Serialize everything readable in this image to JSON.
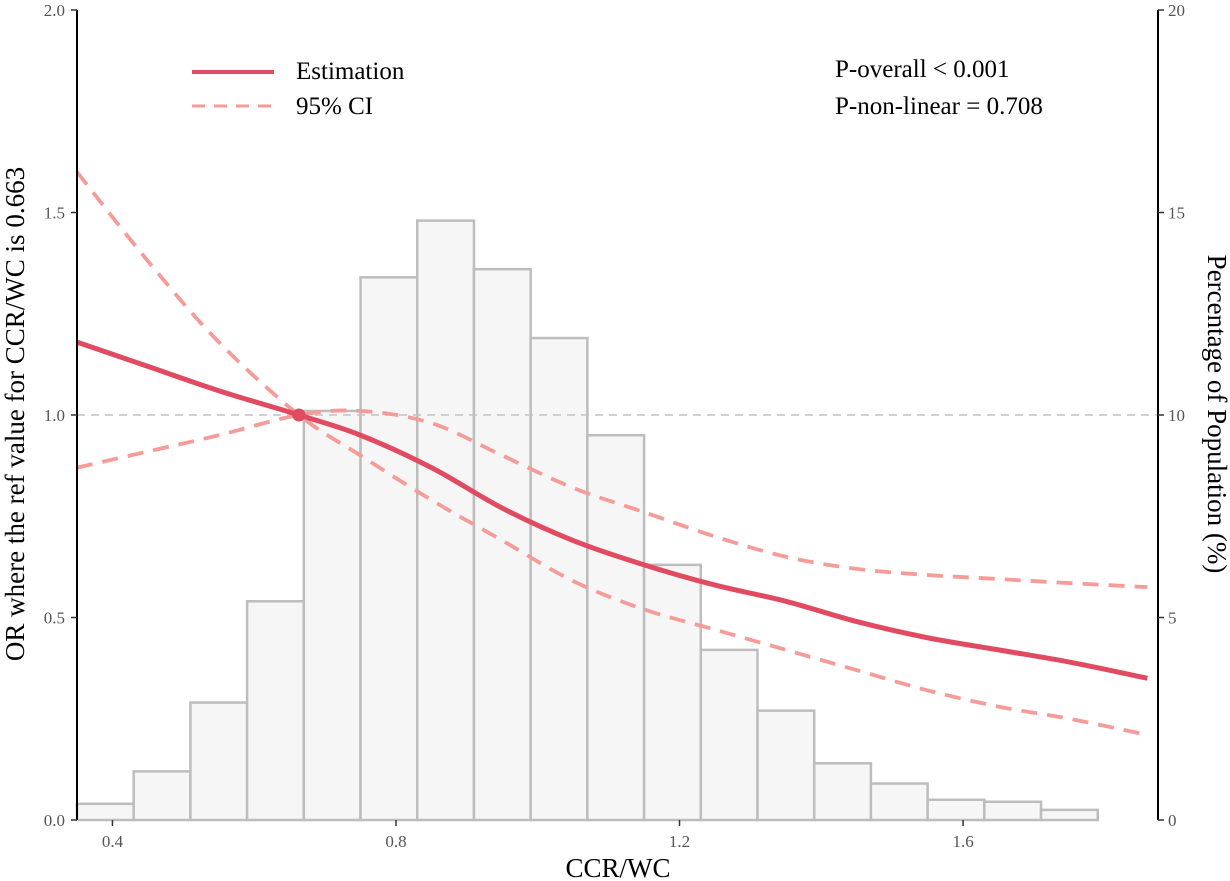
{
  "chart_data": {
    "type": "restricted-cubic-spline-with-histogram",
    "x_axis": {
      "label": "CCR/WC",
      "ticks": [
        0.4,
        0.8,
        1.2,
        1.6
      ],
      "tick_labels": [
        "0.4",
        "0.8",
        "1.2",
        "1.6"
      ],
      "range": [
        0.35,
        1.875
      ]
    },
    "y_axis_left": {
      "label": "OR where the ref value for CCR/WC is 0.663",
      "ticks": [
        0,
        0.5,
        1.0,
        1.5,
        2.0
      ],
      "tick_labels": [
        "0.0",
        "0.5",
        "1.0",
        "1.5",
        "2.0"
      ],
      "range": [
        0,
        2
      ]
    },
    "y_axis_right": {
      "label": "Percentage of Population (%)",
      "ticks": [
        0,
        5,
        10,
        15,
        20
      ],
      "tick_labels": [
        "0",
        "5",
        "10",
        "15",
        "20"
      ],
      "range": [
        0,
        20
      ]
    },
    "reference_line_y": 1.0,
    "reference_point": {
      "x": 0.663,
      "y": 1.0
    },
    "legend": [
      {
        "name": "Estimation",
        "style": "solid"
      },
      {
        "name": "95% CI",
        "style": "dashed"
      }
    ],
    "annotations": [
      "P-overall < 0.001",
      "P-non-linear = 0.708"
    ],
    "histogram": {
      "bin_edges": [
        0.35,
        0.43,
        0.51,
        0.59,
        0.67,
        0.75,
        0.83,
        0.91,
        0.99,
        1.07,
        1.15,
        1.23,
        1.31,
        1.39,
        1.47,
        1.55,
        1.63,
        1.71,
        1.79
      ],
      "percent": [
        0.4,
        1.2,
        2.9,
        5.4,
        10.1,
        13.4,
        14.8,
        13.6,
        11.9,
        9.5,
        6.3,
        4.2,
        2.7,
        1.4,
        0.9,
        0.5,
        0.45,
        0.25
      ]
    },
    "series": [
      {
        "name": "Estimation",
        "x": [
          0.35,
          0.45,
          0.55,
          0.663,
          0.75,
          0.85,
          0.95,
          1.05,
          1.15,
          1.25,
          1.35,
          1.45,
          1.55,
          1.65,
          1.75,
          1.86
        ],
        "y": [
          1.18,
          1.12,
          1.06,
          1.0,
          0.95,
          0.87,
          0.77,
          0.69,
          0.63,
          0.58,
          0.54,
          0.49,
          0.45,
          0.42,
          0.39,
          0.35
        ]
      },
      {
        "name": "95% CI upper",
        "x": [
          0.35,
          0.45,
          0.55,
          0.663,
          0.75,
          0.85,
          0.95,
          1.05,
          1.15,
          1.25,
          1.35,
          1.45,
          1.55,
          1.65,
          1.75,
          1.86
        ],
        "y": [
          1.6,
          1.38,
          1.18,
          1.0,
          0.9,
          0.79,
          0.69,
          0.59,
          0.52,
          0.47,
          0.42,
          0.37,
          0.32,
          0.28,
          0.25,
          0.21
        ]
      },
      {
        "name": "95% CI lower",
        "x": [
          0.35,
          0.45,
          0.55,
          0.663,
          0.75,
          0.85,
          0.95,
          1.05,
          1.15,
          1.25,
          1.35,
          1.45,
          1.55,
          1.65,
          1.75,
          1.86
        ],
        "y": [
          0.87,
          0.91,
          0.95,
          1.0,
          1.01,
          0.98,
          0.9,
          0.82,
          0.76,
          0.7,
          0.65,
          0.62,
          0.605,
          0.595,
          0.585,
          0.575
        ]
      }
    ]
  },
  "colors": {
    "estimation": "#e14b62",
    "ci": "#f59b98",
    "bar_fill": "#f7f6f7",
    "bar_stroke": "#bdbdbd",
    "refline": "#c2c2c2"
  }
}
